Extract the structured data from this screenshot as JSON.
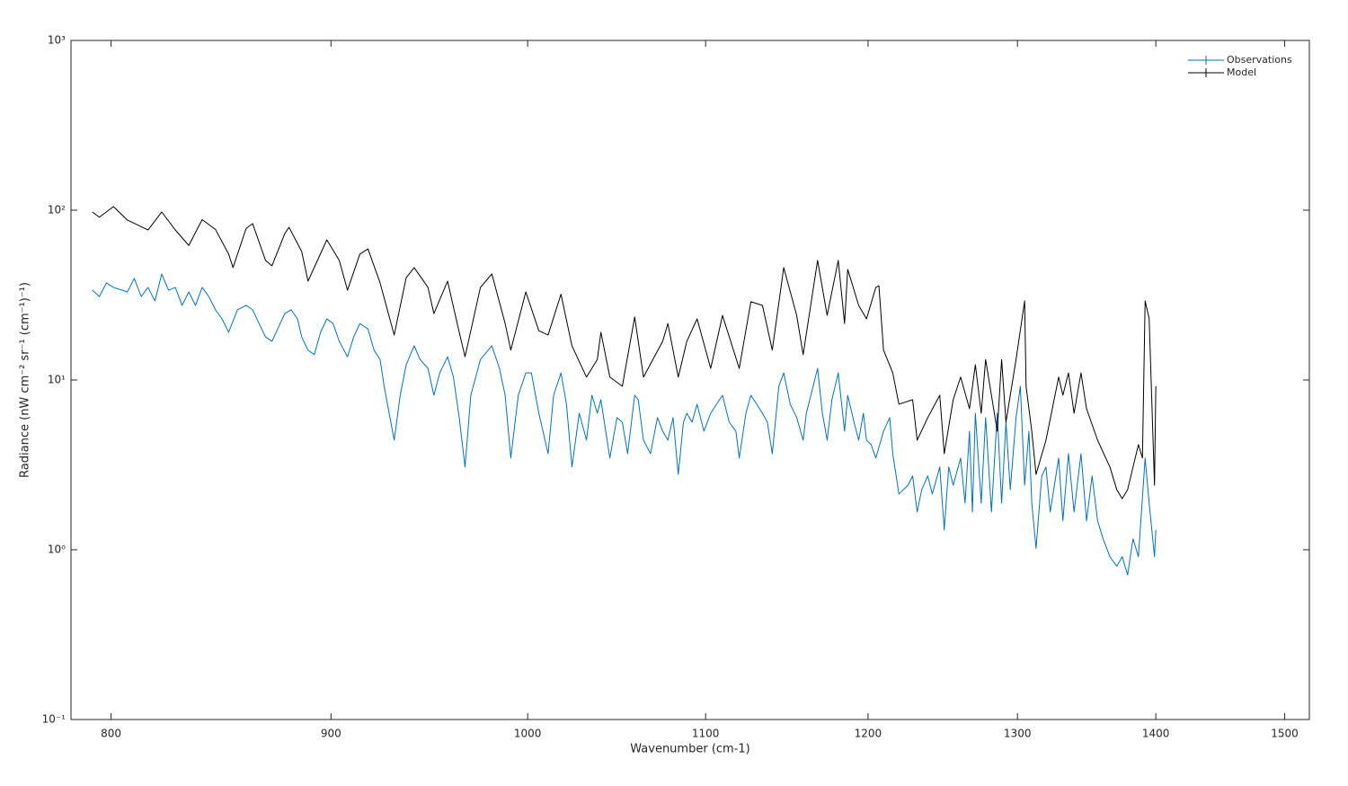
{
  "chart_data": {
    "type": "line",
    "xlabel": "Wavenumber (cm-1)",
    "ylabel": "Radiance (nW cm⁻² sr⁻¹ (cm⁻¹)⁻¹)",
    "xscale": "log",
    "yscale": "log",
    "xlim": [
      783,
      1520
    ],
    "ylim": [
      0.1,
      1000
    ],
    "xticks": [
      800,
      900,
      1000,
      1100,
      1200,
      1300,
      1400,
      1500
    ],
    "yticks": [
      {
        "value": 0.1,
        "label": "10⁻¹"
      },
      {
        "value": 1,
        "label": "10⁰"
      },
      {
        "value": 10,
        "label": "10¹"
      },
      {
        "value": 100,
        "label": "10²"
      },
      {
        "value": 1000,
        "label": "10³"
      }
    ],
    "grid": false,
    "legend": "upper right",
    "series": [
      {
        "name": "Observations",
        "color": "#0072bd",
        "x": [
          792,
          795,
          798,
          801,
          807,
          810,
          813,
          816,
          819,
          822,
          825,
          828,
          831,
          834,
          837,
          840,
          843,
          846,
          849,
          852,
          856,
          860,
          863,
          866,
          869,
          872,
          878,
          881,
          884,
          886,
          889,
          892,
          895,
          898,
          901,
          904,
          908,
          911,
          914,
          918,
          921,
          924,
          926,
          931,
          934,
          937,
          941,
          944,
          948,
          951,
          954,
          958,
          961,
          964,
          967,
          970,
          975,
          981,
          985,
          988,
          991,
          995,
          999,
          1002,
          1006,
          1011,
          1014,
          1018,
          1021,
          1024,
          1028,
          1032,
          1035,
          1038,
          1040,
          1045,
          1049,
          1052,
          1055,
          1059,
          1061,
          1064,
          1068,
          1072,
          1075,
          1078,
          1081,
          1084,
          1087,
          1089,
          1092,
          1095,
          1099,
          1103,
          1110,
          1114,
          1118,
          1120,
          1124,
          1127,
          1134,
          1137,
          1140,
          1144,
          1147,
          1151,
          1155,
          1159,
          1161,
          1168,
          1171,
          1174,
          1177,
          1181,
          1185,
          1187,
          1191,
          1194,
          1197,
          1199,
          1202,
          1205,
          1210,
          1214,
          1216,
          1220,
          1226,
          1229,
          1232,
          1235,
          1239,
          1242,
          1247,
          1250,
          1253,
          1256,
          1261,
          1264,
          1267,
          1269,
          1271,
          1275,
          1278,
          1282,
          1286,
          1289,
          1292,
          1295,
          1299,
          1302,
          1305,
          1308,
          1310,
          1313,
          1317,
          1320,
          1323,
          1329,
          1332,
          1336,
          1340,
          1345,
          1349,
          1353,
          1357,
          1361,
          1366,
          1371,
          1375,
          1379,
          1383,
          1387,
          1392,
          1395,
          1399,
          1400
        ],
        "values": [
          33.8,
          31,
          37.3,
          35.1,
          33,
          39.6,
          31,
          35.1,
          29.2,
          42.1,
          33.8,
          35.1,
          27.5,
          33,
          27.5,
          35.1,
          31,
          25.9,
          22.9,
          19.1,
          25.9,
          27.5,
          25.9,
          21.5,
          17.9,
          16.9,
          24.6,
          25.9,
          22.9,
          17.9,
          15,
          14.1,
          19.1,
          22.9,
          21.5,
          16.9,
          13.7,
          17.9,
          21.5,
          20,
          15,
          13.2,
          9.18,
          4.42,
          8.13,
          12.3,
          15.9,
          13.2,
          11.7,
          8.13,
          11,
          13.7,
          10.4,
          6,
          3.07,
          8.13,
          13.2,
          15.9,
          11.7,
          8.13,
          3.47,
          8.13,
          11,
          11,
          6.37,
          3.68,
          8.13,
          11,
          7.2,
          3.07,
          6.37,
          4.42,
          8.13,
          6.37,
          7.65,
          3.47,
          6,
          5.64,
          3.68,
          8.13,
          7.65,
          4.42,
          3.68,
          6,
          4.99,
          4.42,
          6,
          2.78,
          5.64,
          6.37,
          5.64,
          7.2,
          4.99,
          6.37,
          8.13,
          5.64,
          4.99,
          3.47,
          6.37,
          8.13,
          6.37,
          5.64,
          3.68,
          9.18,
          11,
          7.2,
          6,
          4.42,
          6.37,
          11.7,
          6.37,
          4.42,
          7.65,
          11,
          4.99,
          8.13,
          5.64,
          4.42,
          6.37,
          4.42,
          4.16,
          3.47,
          4.99,
          6,
          3.68,
          2.13,
          2.4,
          2.72,
          1.67,
          2.26,
          2.72,
          2.13,
          3.07,
          1.31,
          3.07,
          2.4,
          3.47,
          1.88,
          4.99,
          1.67,
          6.37,
          1.88,
          6,
          1.67,
          6.37,
          1.88,
          5.64,
          2.26,
          6,
          9.18,
          2.4,
          4.99,
          1.88,
          1.02,
          2.72,
          3.07,
          1.67,
          3.47,
          1.48,
          3.68,
          1.67,
          3.68,
          1.48,
          2.72,
          1.48,
          1.16,
          0.91,
          0.8,
          0.91,
          0.71,
          1.16,
          0.91,
          3.47,
          1.88,
          0.91,
          1.31
        ]
      },
      {
        "name": "Model",
        "color": "#000000",
        "x": [
          792,
          795,
          801,
          807,
          813,
          816,
          822,
          828,
          834,
          840,
          846,
          852,
          854,
          860,
          863,
          869,
          872,
          878,
          880,
          886,
          889,
          898,
          904,
          908,
          914,
          918,
          924,
          931,
          937,
          941,
          948,
          951,
          958,
          964,
          967,
          975,
          981,
          988,
          991,
          999,
          1006,
          1011,
          1018,
          1024,
          1032,
          1038,
          1040,
          1045,
          1052,
          1059,
          1064,
          1075,
          1078,
          1084,
          1089,
          1095,
          1103,
          1110,
          1120,
          1127,
          1134,
          1140,
          1147,
          1155,
          1159,
          1168,
          1174,
          1181,
          1185,
          1187,
          1194,
          1199,
          1205,
          1207,
          1210,
          1216,
          1220,
          1229,
          1232,
          1239,
          1247,
          1250,
          1256,
          1261,
          1267,
          1271,
          1275,
          1278,
          1286,
          1289,
          1292,
          1299,
          1305,
          1306,
          1310,
          1313,
          1320,
          1329,
          1332,
          1336,
          1340,
          1345,
          1349,
          1357,
          1366,
          1371,
          1375,
          1379,
          1387,
          1390,
          1392,
          1395,
          1399,
          1400
        ],
        "values": [
          97.6,
          91,
          105,
          87.5,
          80,
          76.5,
          97.6,
          76.5,
          62,
          88,
          77,
          55.1,
          45.9,
          78,
          83.4,
          50.6,
          47,
          72.8,
          79.3,
          57.1,
          38.2,
          66.9,
          50.6,
          33.8,
          55.1,
          59.2,
          37.3,
          18.4,
          40,
          45.9,
          35.1,
          24.6,
          38.2,
          19.1,
          13.7,
          35.1,
          42.1,
          21.5,
          15,
          33,
          19.5,
          18.4,
          32,
          15.9,
          10.4,
          13.2,
          19.1,
          10.4,
          9.18,
          23.5,
          10.4,
          16.9,
          21.5,
          10.4,
          16.9,
          22.9,
          11.7,
          24,
          11.7,
          28.9,
          27.5,
          15,
          45.9,
          24,
          14.1,
          50.6,
          24,
          50.6,
          21.5,
          44.8,
          27.5,
          22.9,
          35.1,
          35.9,
          15,
          11,
          7.2,
          7.65,
          4.42,
          6,
          8.13,
          3.68,
          7.65,
          10.4,
          6.77,
          12.3,
          6.37,
          13.2,
          4.99,
          13.2,
          5.64,
          13.2,
          29.2,
          9.18,
          4.99,
          2.78,
          4.42,
          10.4,
          8.13,
          11,
          6.37,
          11,
          6.77,
          4.42,
          3.07,
          2.26,
          2,
          2.26,
          4.16,
          3.47,
          29.2,
          23,
          2.4,
          9.18
        ]
      }
    ]
  }
}
